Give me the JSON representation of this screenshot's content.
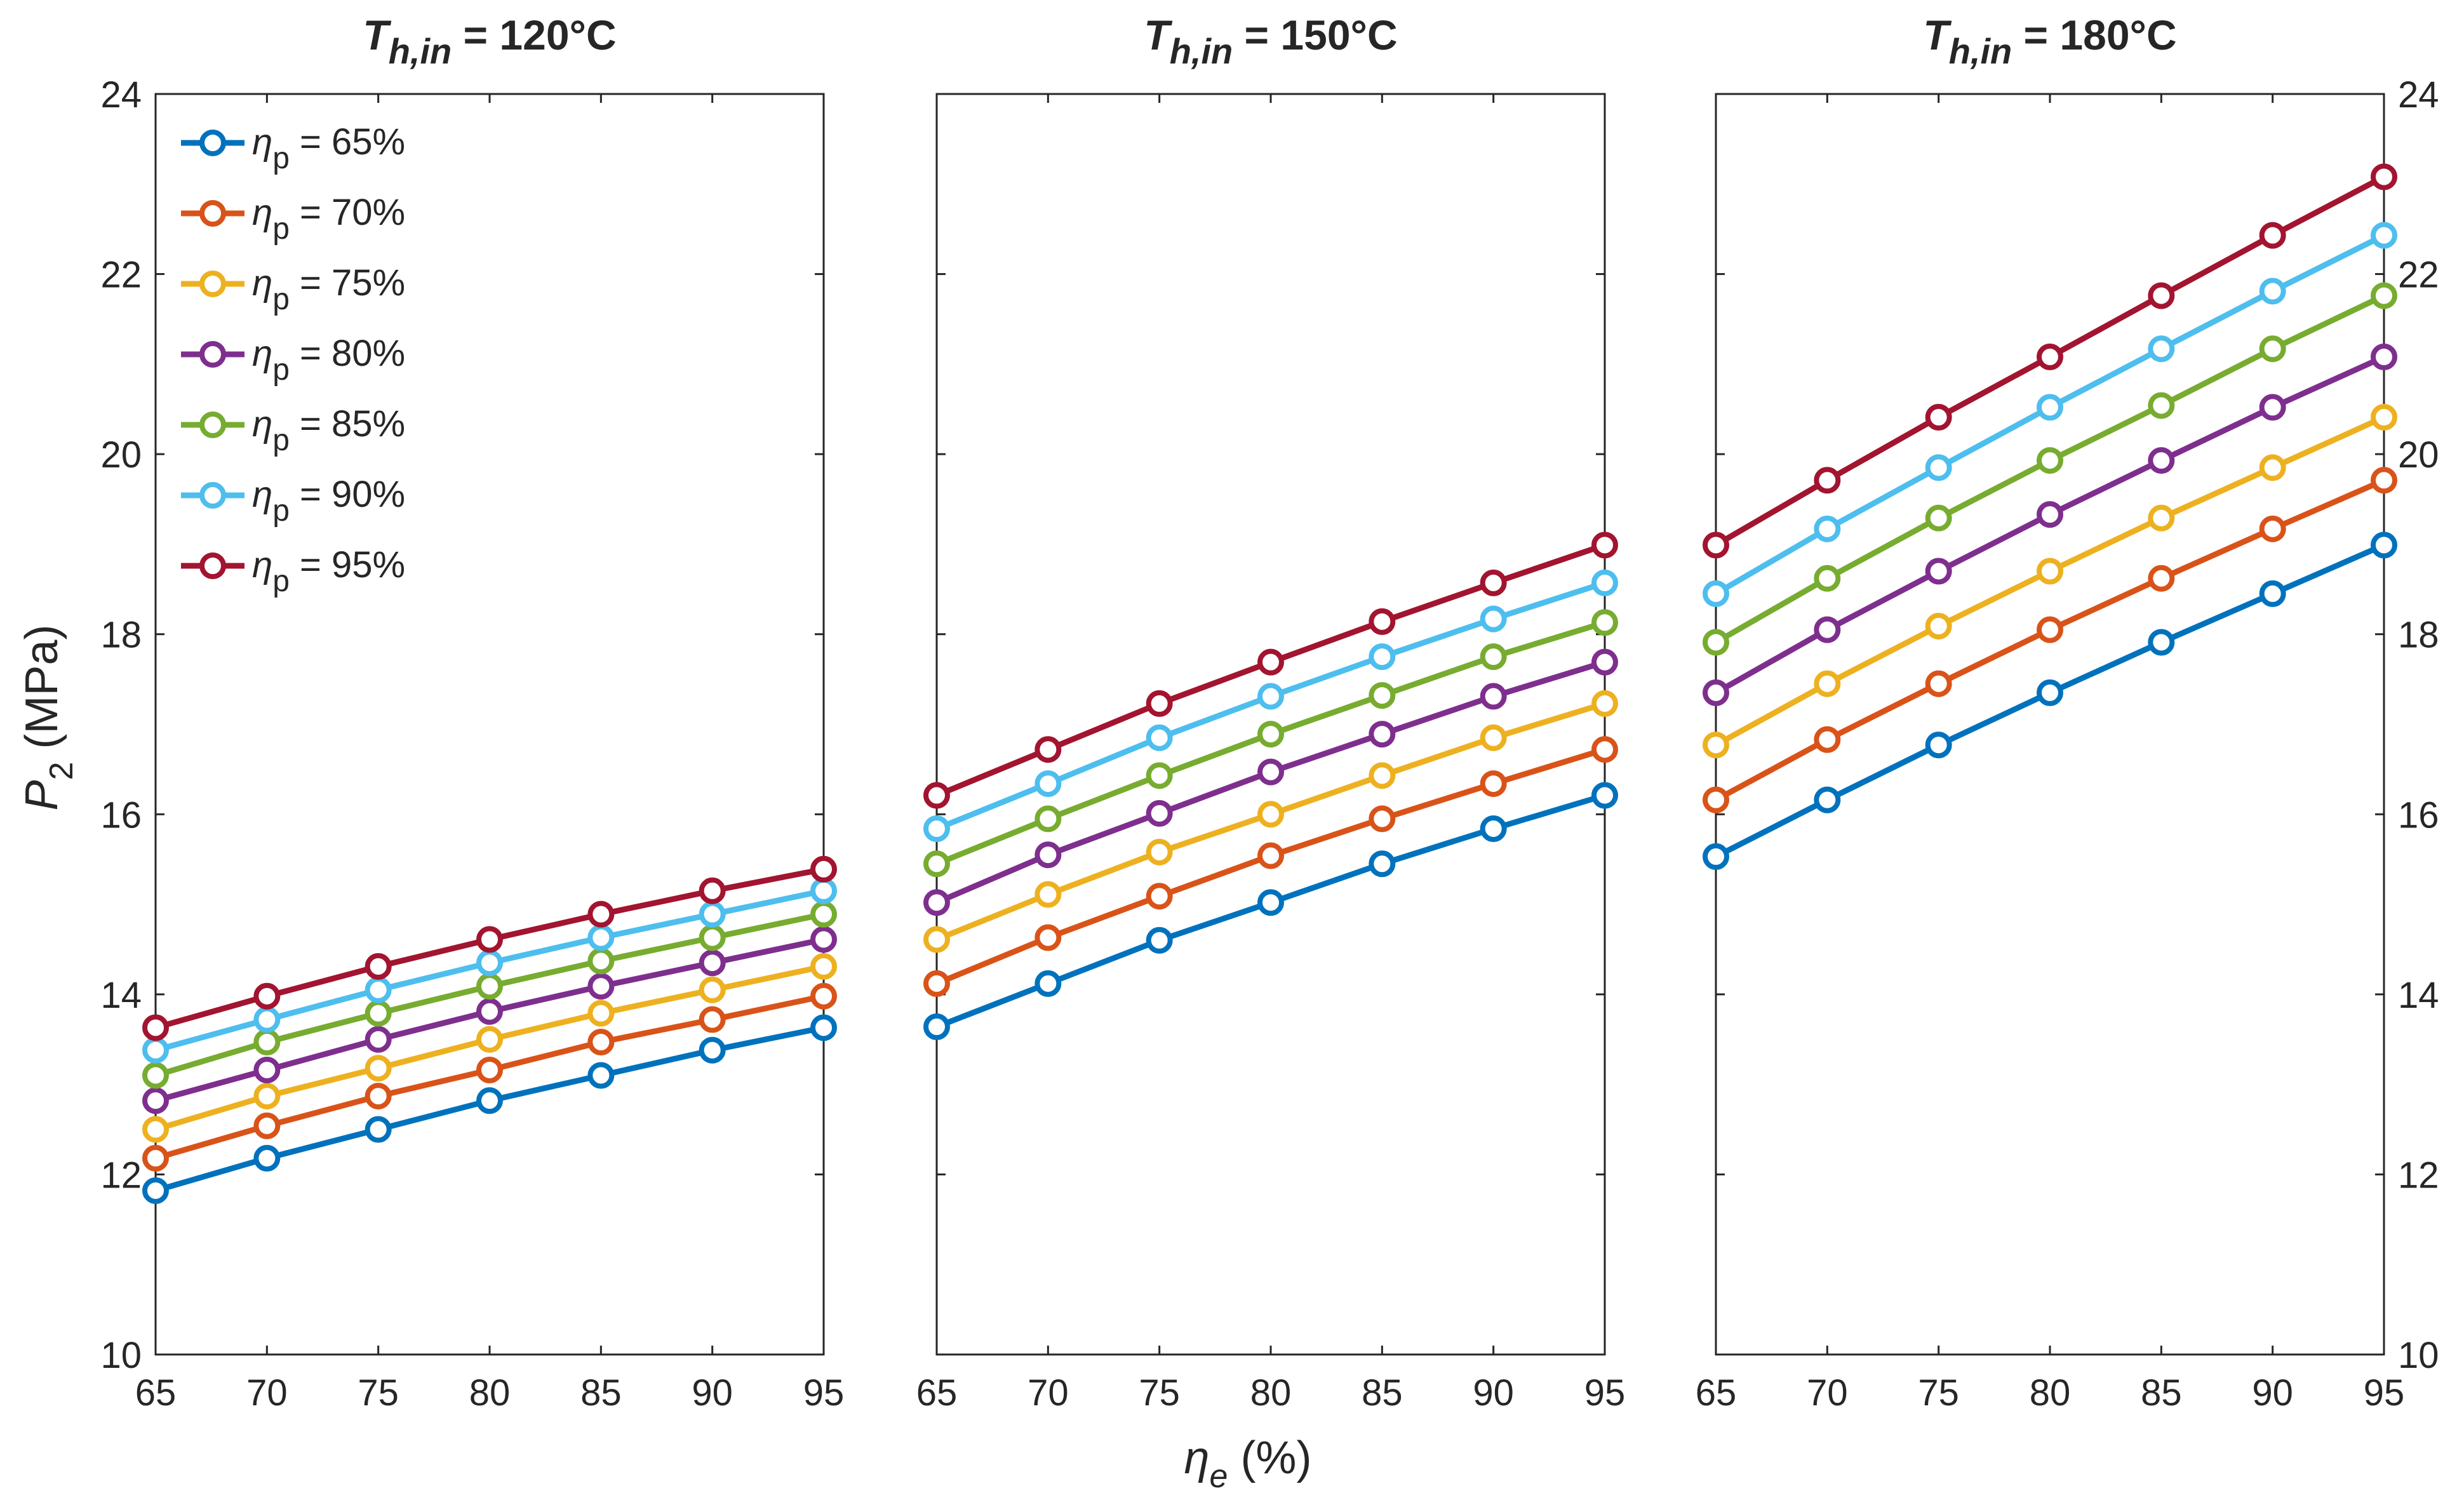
{
  "chart_data": {
    "type": "line",
    "x": [
      65,
      70,
      75,
      80,
      85,
      90,
      95
    ],
    "x_tick_labels": [
      "65",
      "70",
      "75",
      "80",
      "85",
      "90",
      "95"
    ],
    "xlim": [
      65,
      95
    ],
    "ylim": [
      10,
      24
    ],
    "y_ticks": [
      10,
      12,
      14,
      16,
      18,
      20,
      22,
      24
    ],
    "y_tick_labels": [
      "10",
      "12",
      "14",
      "16",
      "18",
      "20",
      "22",
      "24"
    ],
    "xlabel": {
      "symbol": "η",
      "subscript": "e",
      "unit": " (%)"
    },
    "ylabel": {
      "symbol": "P",
      "subscript": "2",
      "unit": " (MPa)"
    },
    "grid": true,
    "legend": {
      "placement": "top-left",
      "symbol": "η",
      "subscript": "p",
      "labels": [
        " = 65%",
        " = 70%",
        " = 75%",
        " = 80%",
        " = 85%",
        " = 90%",
        " = 95%"
      ]
    },
    "series_colors": [
      "#0072BD",
      "#D95319",
      "#EDB120",
      "#7E2F8E",
      "#77AC30",
      "#4DBEEE",
      "#A2142F"
    ],
    "panels": [
      {
        "title": {
          "symbol": "T",
          "subscript": "h,in",
          "rest": " = 120°C"
        },
        "series": [
          {
            "name": "ηp = 65%",
            "values": [
              11.82,
              12.18,
              12.5,
              12.82,
              13.1,
              13.38,
              13.63
            ]
          },
          {
            "name": "ηp = 70%",
            "values": [
              12.18,
              12.54,
              12.87,
              13.16,
              13.47,
              13.72,
              13.98
            ]
          },
          {
            "name": "ηp = 75%",
            "values": [
              12.5,
              12.87,
              13.18,
              13.5,
              13.79,
              14.05,
              14.31
            ]
          },
          {
            "name": "ηp = 80%",
            "values": [
              12.82,
              13.16,
              13.5,
              13.81,
              14.09,
              14.35,
              14.61
            ]
          },
          {
            "name": "ηp = 85%",
            "values": [
              13.1,
              13.47,
              13.79,
              14.09,
              14.37,
              14.63,
              14.89
            ]
          },
          {
            "name": "ηp = 90%",
            "values": [
              13.38,
              13.72,
              14.05,
              14.35,
              14.63,
              14.89,
              15.15
            ]
          },
          {
            "name": "ηp = 95%",
            "values": [
              13.63,
              13.98,
              14.31,
              14.61,
              14.89,
              15.15,
              15.39
            ]
          }
        ]
      },
      {
        "title": {
          "symbol": "T",
          "subscript": "h,in",
          "rest": " = 150°C"
        },
        "series": [
          {
            "name": "ηp = 65%",
            "values": [
              13.64,
              14.12,
              14.6,
              15.02,
              15.45,
              15.84,
              16.21
            ]
          },
          {
            "name": "ηp = 70%",
            "values": [
              14.12,
              14.63,
              15.09,
              15.54,
              15.95,
              16.34,
              16.72
            ]
          },
          {
            "name": "ηp = 75%",
            "values": [
              14.61,
              15.11,
              15.58,
              16.0,
              16.43,
              16.85,
              17.23
            ]
          },
          {
            "name": "ηp = 80%",
            "values": [
              15.02,
              15.55,
              16.01,
              16.47,
              16.89,
              17.31,
              17.69
            ]
          },
          {
            "name": "ηp = 85%",
            "values": [
              15.45,
              15.95,
              16.43,
              16.89,
              17.32,
              17.75,
              18.13
            ]
          },
          {
            "name": "ηp = 90%",
            "values": [
              15.84,
              16.34,
              16.85,
              17.31,
              17.75,
              18.17,
              18.57
            ]
          },
          {
            "name": "ηp = 95%",
            "values": [
              16.21,
              16.72,
              17.23,
              17.69,
              18.14,
              18.57,
              18.99
            ]
          }
        ]
      },
      {
        "title": {
          "symbol": "T",
          "subscript": "h,in",
          "rest": " = 180°C"
        },
        "series": [
          {
            "name": "ηp = 65%",
            "values": [
              15.53,
              16.16,
              16.77,
              17.35,
              17.91,
              18.45,
              18.99
            ]
          },
          {
            "name": "ηp = 70%",
            "values": [
              16.16,
              16.83,
              17.45,
              18.05,
              18.62,
              19.17,
              19.71
            ]
          },
          {
            "name": "ηp = 75%",
            "values": [
              16.77,
              17.45,
              18.09,
              18.7,
              19.29,
              19.85,
              20.41
            ]
          },
          {
            "name": "ηp = 80%",
            "values": [
              17.35,
              18.05,
              18.7,
              19.33,
              19.93,
              20.52,
              21.08
            ]
          },
          {
            "name": "ηp = 85%",
            "values": [
              17.91,
              18.62,
              19.29,
              19.93,
              20.54,
              21.17,
              21.76
            ]
          },
          {
            "name": "ηp = 90%",
            "values": [
              18.45,
              19.17,
              19.85,
              20.52,
              21.17,
              21.81,
              22.43
            ]
          },
          {
            "name": "ηp = 95%",
            "values": [
              18.99,
              19.71,
              20.41,
              21.08,
              21.76,
              22.43,
              23.08
            ]
          }
        ]
      }
    ]
  }
}
